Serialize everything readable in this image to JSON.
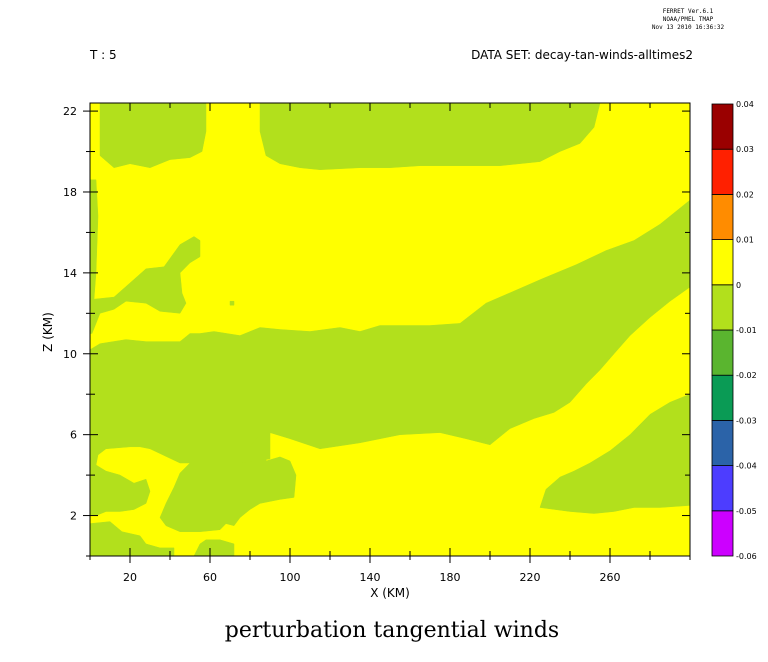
{
  "header": {
    "ferret_version": "FERRET Ver.6.1",
    "org": "NOAA/PMEL TMAP",
    "timestamp": "Nov 13 2010 16:36:32",
    "time_label": "T : 5",
    "dataset_label": "DATA SET: decay-tan-winds-alltimes2"
  },
  "chart_data": {
    "type": "heatmap",
    "title": "perturbation tangential winds",
    "xlabel": "X (KM)",
    "ylabel": "Z (KM)",
    "xlim": [
      0,
      300
    ],
    "ylim": [
      0,
      22.4
    ],
    "x_ticks": [
      20,
      60,
      100,
      140,
      180,
      220,
      260
    ],
    "y_ticks": [
      2,
      6,
      10,
      14,
      18,
      22
    ],
    "colorbar": {
      "levels": [
        -0.06,
        -0.05,
        -0.04,
        -0.03,
        -0.02,
        -0.01,
        0,
        0.01,
        0.02,
        0.03,
        0.04
      ],
      "labels": [
        "-0.06",
        "-0.05",
        "-0.04",
        "-0.03",
        "-0.02",
        "-0.01",
        "0",
        "0.01",
        "0.02",
        "0.03",
        "0.04"
      ],
      "colors": [
        "#cc00ff",
        "#4d3dff",
        "#2b63a8",
        "#0a9b55",
        "#5ab52f",
        "#b2e01c",
        "#ffff00",
        "#ff8c00",
        "#ff2000",
        "#9a0000"
      ]
    },
    "regions": [
      {
        "level": "-0.01 to 0",
        "color": "#b2e01c",
        "polygons": [
          [
            [
              5,
              22.4
            ],
            [
              58,
              22.4
            ],
            [
              58,
              21
            ],
            [
              56,
              20
            ],
            [
              50,
              19.7
            ],
            [
              40,
              19.6
            ],
            [
              30,
              19.2
            ],
            [
              20,
              19.4
            ],
            [
              12,
              19.2
            ],
            [
              5,
              19.8
            ],
            [
              5,
              22.4
            ]
          ],
          [
            [
              85,
              22.4
            ],
            [
              255,
              22.4
            ],
            [
              252,
              21.2
            ],
            [
              245,
              20.4
            ],
            [
              235,
              20
            ],
            [
              225,
              19.5
            ],
            [
              205,
              19.3
            ],
            [
              185,
              19.3
            ],
            [
              165,
              19.3
            ],
            [
              150,
              19.2
            ],
            [
              135,
              19.2
            ],
            [
              115,
              19.1
            ],
            [
              105,
              19.2
            ],
            [
              95,
              19.4
            ],
            [
              88,
              19.8
            ],
            [
              85,
              21
            ],
            [
              85,
              22.4
            ]
          ],
          [
            [
              0,
              18.6
            ],
            [
              3,
              18.6
            ],
            [
              4,
              16.8
            ],
            [
              3,
              14
            ],
            [
              2,
              12.7
            ],
            [
              12,
              12.8
            ],
            [
              20,
              13.5
            ],
            [
              28,
              14.2
            ],
            [
              37,
              14.3
            ],
            [
              45,
              15.4
            ],
            [
              52,
              15.8
            ],
            [
              55,
              15.6
            ],
            [
              55,
              14.8
            ],
            [
              50,
              14.5
            ],
            [
              45,
              14
            ],
            [
              46,
              13
            ],
            [
              48,
              12.5
            ],
            [
              45,
              12
            ],
            [
              35,
              12.1
            ],
            [
              28,
              12.5
            ],
            [
              18,
              12.6
            ],
            [
              12,
              12.2
            ],
            [
              5,
              12
            ],
            [
              1,
              11
            ],
            [
              0,
              11
            ],
            [
              0,
              18.6
            ]
          ],
          [
            [
              0,
              10.2
            ],
            [
              5,
              10.5
            ],
            [
              18,
              10.7
            ],
            [
              28,
              10.6
            ],
            [
              35,
              10.6
            ],
            [
              45,
              10.6
            ],
            [
              50,
              11
            ],
            [
              55,
              11
            ],
            [
              62,
              11.1
            ],
            [
              75,
              10.9
            ],
            [
              85,
              11.3
            ],
            [
              95,
              11.2
            ],
            [
              110,
              11.1
            ],
            [
              125,
              11.3
            ],
            [
              135,
              11.1
            ],
            [
              145,
              11.4
            ],
            [
              155,
              11.4
            ],
            [
              170,
              11.4
            ],
            [
              185,
              11.5
            ],
            [
              198,
              12.5
            ],
            [
              212,
              13.1
            ],
            [
              226,
              13.7
            ],
            [
              243,
              14.4
            ],
            [
              258,
              15.1
            ],
            [
              272,
              15.6
            ],
            [
              285,
              16.4
            ],
            [
              300,
              17.6
            ],
            [
              300,
              13.3
            ],
            [
              290,
              12.6
            ],
            [
              280,
              11.8
            ],
            [
              270,
              10.9
            ],
            [
              262,
              10
            ],
            [
              255,
              9.2
            ],
            [
              248,
              8.5
            ],
            [
              240,
              7.6
            ],
            [
              232,
              7.1
            ],
            [
              222,
              6.8
            ],
            [
              210,
              6.3
            ],
            [
              200,
              5.5
            ],
            [
              188,
              5.8
            ],
            [
              175,
              6.1
            ],
            [
              155,
              6
            ],
            [
              135,
              5.6
            ],
            [
              115,
              5.3
            ],
            [
              100,
              5.8
            ],
            [
              90,
              6.1
            ],
            [
              88,
              4.7
            ],
            [
              95,
              4.9
            ],
            [
              100,
              4.7
            ],
            [
              103,
              4
            ],
            [
              102,
              2.9
            ],
            [
              95,
              2.8
            ],
            [
              85,
              2.6
            ],
            [
              80,
              2.3
            ],
            [
              75,
              1.9
            ],
            [
              72,
              1.5
            ],
            [
              68,
              1.6
            ],
            [
              65,
              1.3
            ],
            [
              55,
              1.2
            ],
            [
              45,
              1.2
            ],
            [
              38,
              1.5
            ],
            [
              35,
              1.9
            ],
            [
              38,
              2.6
            ],
            [
              42,
              3.4
            ],
            [
              45,
              4.1
            ],
            [
              50,
              4.6
            ],
            [
              55,
              5.4
            ],
            [
              58,
              5.8
            ],
            [
              60,
              5.9
            ],
            [
              64,
              5.6
            ],
            [
              68,
              5.9
            ],
            [
              72,
              5.6
            ],
            [
              76,
              5.9
            ],
            [
              80,
              5.4
            ],
            [
              84,
              5.9
            ],
            [
              89,
              5.3
            ],
            [
              90,
              6.1
            ],
            [
              90,
              4.8
            ],
            [
              75,
              4.6
            ],
            [
              60,
              4.6
            ],
            [
              45,
              4.6
            ],
            [
              30,
              5.3
            ],
            [
              25,
              5.4
            ],
            [
              20,
              5.4
            ],
            [
              8,
              5.3
            ],
            [
              4,
              5
            ],
            [
              3,
              4.5
            ],
            [
              8,
              4.2
            ],
            [
              15,
              4
            ],
            [
              22,
              3.6
            ],
            [
              28,
              3.8
            ],
            [
              30,
              3.2
            ],
            [
              28,
              2.6
            ],
            [
              22,
              2.3
            ],
            [
              15,
              2.2
            ],
            [
              8,
              2.2
            ],
            [
              3,
              2
            ],
            [
              0,
              2
            ],
            [
              0,
              10.2
            ]
          ],
          [
            [
              0,
              1.6
            ],
            [
              10,
              1.7
            ],
            [
              16,
              1.2
            ],
            [
              25,
              1
            ],
            [
              28,
              0.6
            ],
            [
              35,
              0.4
            ],
            [
              42,
              0.4
            ],
            [
              42,
              0
            ],
            [
              0,
              0
            ],
            [
              0,
              1.6
            ]
          ],
          [
            [
              52,
              0
            ],
            [
              72,
              0
            ],
            [
              72,
              0.6
            ],
            [
              65,
              0.8
            ],
            [
              58,
              0.8
            ],
            [
              55,
              0.6
            ],
            [
              52,
              0
            ]
          ],
          [
            [
              225,
              2.4
            ],
            [
              240,
              2.2
            ],
            [
              252,
              2.1
            ],
            [
              262,
              2.2
            ],
            [
              272,
              2.4
            ],
            [
              285,
              2.4
            ],
            [
              300,
              2.5
            ],
            [
              300,
              8
            ],
            [
              290,
              7.6
            ],
            [
              280,
              7
            ],
            [
              270,
              6
            ],
            [
              260,
              5.2
            ],
            [
              250,
              4.6
            ],
            [
              242,
              4.2
            ],
            [
              235,
              3.9
            ],
            [
              228,
              3.3
            ],
            [
              225,
              2.4
            ]
          ]
        ]
      },
      {
        "level": "0 to 0.01",
        "color": "#ffff00",
        "polygons": [
          [
            [
              100,
              17.8
            ],
            [
              90,
              17.9
            ],
            [
              85,
              18.3
            ],
            [
              80,
              18.6
            ],
            [
              75,
              18.9
            ],
            [
              70,
              18.8
            ],
            [
              64,
              18.5
            ],
            [
              60,
              18.4
            ],
            [
              58,
              18
            ],
            [
              65,
              17.9
            ],
            [
              72,
              17.6
            ],
            [
              80,
              17.8
            ],
            [
              90,
              17.7
            ],
            [
              100,
              17.8
            ]
          ]
        ]
      },
      {
        "level": "-0.01 to 0 (islands)",
        "color": "#b2e01c",
        "polygons": [
          [
            [
              70,
              12.4
            ],
            [
              72,
              12.4
            ],
            [
              72,
              12.6
            ],
            [
              70,
              12.6
            ],
            [
              70,
              12.4
            ]
          ],
          [
            [
              193,
              6
            ],
            [
              198,
              5.8
            ],
            [
              198,
              6.1
            ],
            [
              193,
              6
            ],
            [
              193,
              6
            ]
          ]
        ]
      }
    ]
  }
}
